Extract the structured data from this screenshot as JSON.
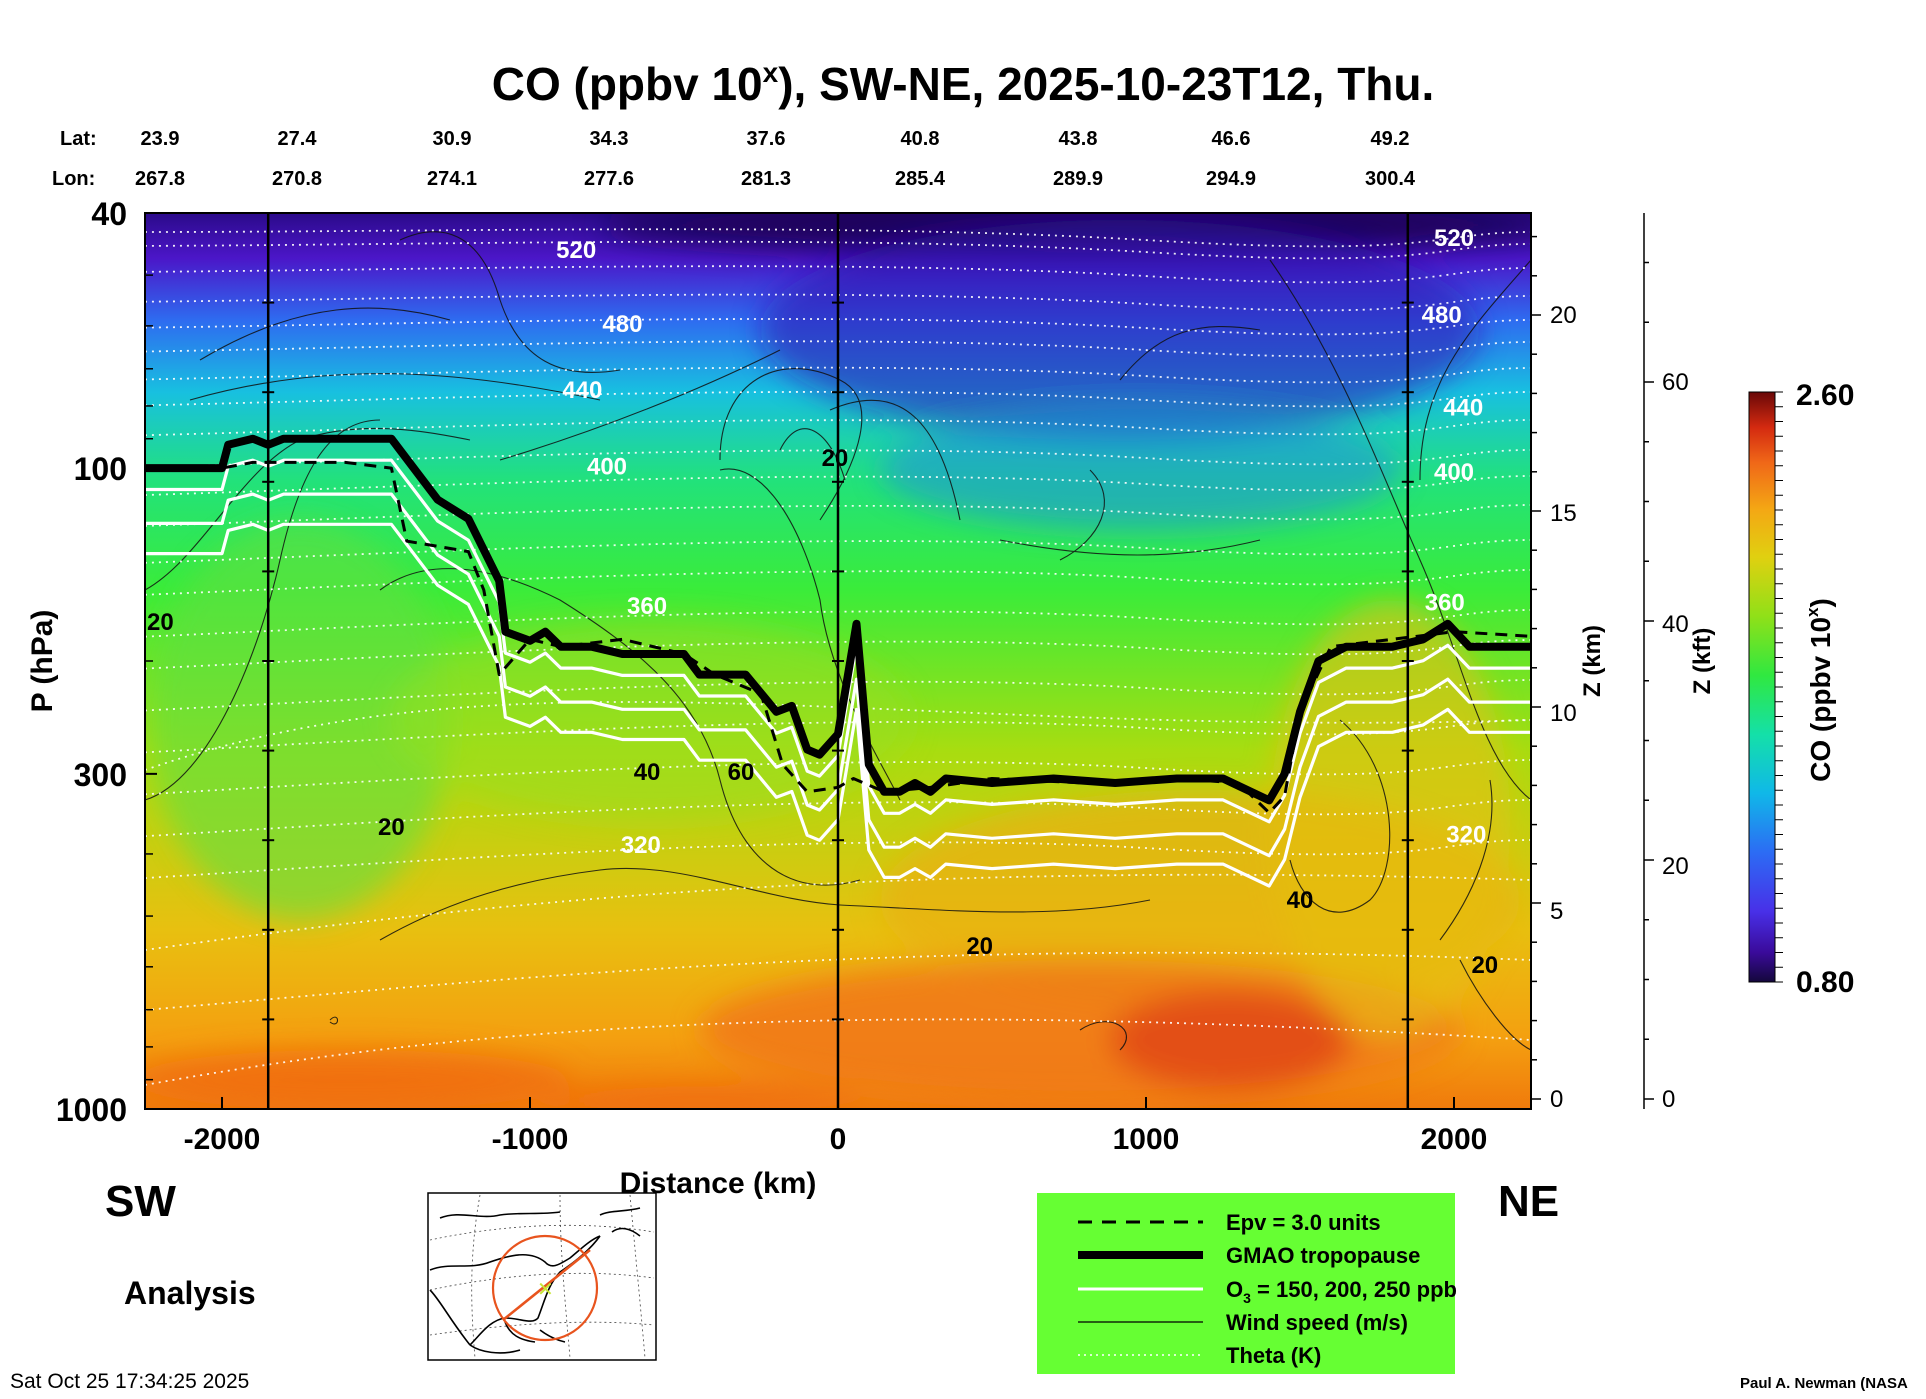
{
  "title": {
    "prefix": "CO (ppbv 10",
    "sup": "x",
    "suffix": "), SW-NE, 2025-10-23T12, Thu."
  },
  "lat_label": "Lat:",
  "lon_label": "Lon:",
  "lat_values": [
    "23.9",
    "27.4",
    "30.9",
    "34.3",
    "37.6",
    "40.8",
    "43.8",
    "46.6",
    "49.2"
  ],
  "lon_values": [
    "267.8",
    "270.8",
    "274.1",
    "277.6",
    "281.3",
    "285.4",
    "289.9",
    "294.9",
    "300.4"
  ],
  "direction_left": "SW",
  "direction_right": "NE",
  "analysis_label": "Analysis",
  "timestamp": "Sat Oct 25 17:34:25 2025",
  "credit": "Paul A. Newman (NASA",
  "colors": {
    "legend_bg": "#66ff33",
    "tropopause": "#000000",
    "ozone": "#ffffff",
    "theta": "#ffffff",
    "map_circle": "#e8541e",
    "map_marker": "#c8e636"
  },
  "chart_data": {
    "type": "heatmap",
    "title": "CO (ppbv 10^x), SW-NE, 2025-10-23T12, Thu.",
    "xlabel": "Distance (km)",
    "ylabel": "P (hPa)",
    "xlim": [
      -2250,
      2250
    ],
    "ylim": [
      1000,
      40
    ],
    "x_ticks": [
      "-2000",
      "-1000",
      "0",
      "1000",
      "2000"
    ],
    "x_tick_values": [
      -2000,
      -1000,
      0,
      1000,
      2000
    ],
    "y_ticks": [
      "40",
      "100",
      "300",
      "1000"
    ],
    "y_tick_values": [
      40,
      100,
      300,
      1000
    ],
    "z_km_label": "Z (km)",
    "z_km_ticks": [
      "0",
      "5",
      "10",
      "15",
      "20"
    ],
    "z_kft_label": "Z (kft)",
    "z_kft_ticks": [
      "0",
      "20",
      "40",
      "60"
    ],
    "colorbar": {
      "label": "CO (ppbv 10",
      "label_sup": "x",
      "label_end": ")",
      "min": "0.80",
      "max": "2.60"
    },
    "vertical_lines_km": [
      -1850,
      0,
      1850
    ],
    "theta_labels": [
      {
        "text": "520",
        "x": -850,
        "p": 46
      },
      {
        "text": "480",
        "x": -700,
        "p": 60
      },
      {
        "text": "440",
        "x": -830,
        "p": 76
      },
      {
        "text": "400",
        "x": -750,
        "p": 100
      },
      {
        "text": "360",
        "x": -620,
        "p": 165
      },
      {
        "text": "320",
        "x": -640,
        "p": 390
      },
      {
        "text": "520",
        "x": 2000,
        "p": 44
      },
      {
        "text": "480",
        "x": 1960,
        "p": 58
      },
      {
        "text": "440",
        "x": 2030,
        "p": 81
      },
      {
        "text": "400",
        "x": 2000,
        "p": 102
      },
      {
        "text": "360",
        "x": 1970,
        "p": 163
      },
      {
        "text": "320",
        "x": 2040,
        "p": 375
      }
    ],
    "wind_labels": [
      {
        "text": "20",
        "x": -2200,
        "p": 175
      },
      {
        "text": "20",
        "x": -1450,
        "p": 365
      },
      {
        "text": "40",
        "x": -620,
        "p": 300
      },
      {
        "text": "60",
        "x": -315,
        "p": 300
      },
      {
        "text": "20",
        "x": -10,
        "p": 97
      },
      {
        "text": "20",
        "x": 460,
        "p": 560
      },
      {
        "text": "40",
        "x": 1500,
        "p": 475
      },
      {
        "text": "20",
        "x": 2100,
        "p": 600
      }
    ],
    "legend": [
      {
        "label": "Epv = 3.0 units",
        "style": "dashed"
      },
      {
        "label": "GMAO tropopause",
        "style": "thick"
      },
      {
        "label_prefix": "O",
        "label_sub": "3",
        "label_suffix": " = 150, 200, 250 ppb",
        "style": "white"
      },
      {
        "label": "Wind speed (m/s)",
        "style": "thin"
      },
      {
        "label": "Theta (K)",
        "style": "dotted"
      }
    ],
    "tropopause": [
      [
        -2250,
        100
      ],
      [
        -2000,
        100
      ],
      [
        -1980,
        92
      ],
      [
        -1900,
        90
      ],
      [
        -1850,
        92
      ],
      [
        -1800,
        90
      ],
      [
        -1600,
        90
      ],
      [
        -1450,
        90
      ],
      [
        -1300,
        112
      ],
      [
        -1200,
        120
      ],
      [
        -1100,
        150
      ],
      [
        -1080,
        180
      ],
      [
        -1000,
        186
      ],
      [
        -950,
        180
      ],
      [
        -900,
        190
      ],
      [
        -800,
        190
      ],
      [
        -700,
        195
      ],
      [
        -500,
        195
      ],
      [
        -450,
        210
      ],
      [
        -300,
        210
      ],
      [
        -200,
        240
      ],
      [
        -150,
        235
      ],
      [
        -100,
        275
      ],
      [
        -60,
        280
      ],
      [
        0,
        260
      ],
      [
        40,
        200
      ],
      [
        60,
        175
      ],
      [
        100,
        290
      ],
      [
        150,
        320
      ],
      [
        200,
        320
      ],
      [
        250,
        310
      ],
      [
        300,
        320
      ],
      [
        350,
        305
      ],
      [
        500,
        310
      ],
      [
        700,
        305
      ],
      [
        900,
        310
      ],
      [
        1100,
        305
      ],
      [
        1250,
        305
      ],
      [
        1400,
        330
      ],
      [
        1450,
        300
      ],
      [
        1500,
        240
      ],
      [
        1560,
        200
      ],
      [
        1650,
        190
      ],
      [
        1800,
        190
      ],
      [
        1900,
        185
      ],
      [
        1980,
        175
      ],
      [
        2050,
        190
      ],
      [
        2100,
        190
      ],
      [
        2250,
        190
      ]
    ],
    "epv": [
      [
        -2250,
        100
      ],
      [
        -2000,
        100
      ],
      [
        -1900,
        98
      ],
      [
        -1600,
        98
      ],
      [
        -1450,
        100
      ],
      [
        -1400,
        130
      ],
      [
        -1200,
        135
      ],
      [
        -1150,
        155
      ],
      [
        -1100,
        210
      ],
      [
        -1000,
        185
      ],
      [
        -900,
        190
      ],
      [
        -700,
        185
      ],
      [
        -500,
        195
      ],
      [
        -400,
        210
      ],
      [
        -250,
        225
      ],
      [
        -180,
        290
      ],
      [
        -100,
        320
      ],
      [
        0,
        315
      ],
      [
        50,
        305
      ],
      [
        150,
        320
      ],
      [
        300,
        315
      ],
      [
        500,
        305
      ],
      [
        800,
        310
      ],
      [
        1100,
        305
      ],
      [
        1300,
        310
      ],
      [
        1400,
        345
      ],
      [
        1450,
        325
      ],
      [
        1500,
        240
      ],
      [
        1600,
        190
      ],
      [
        1800,
        185
      ],
      [
        2000,
        180
      ],
      [
        2250,
        183
      ]
    ]
  }
}
